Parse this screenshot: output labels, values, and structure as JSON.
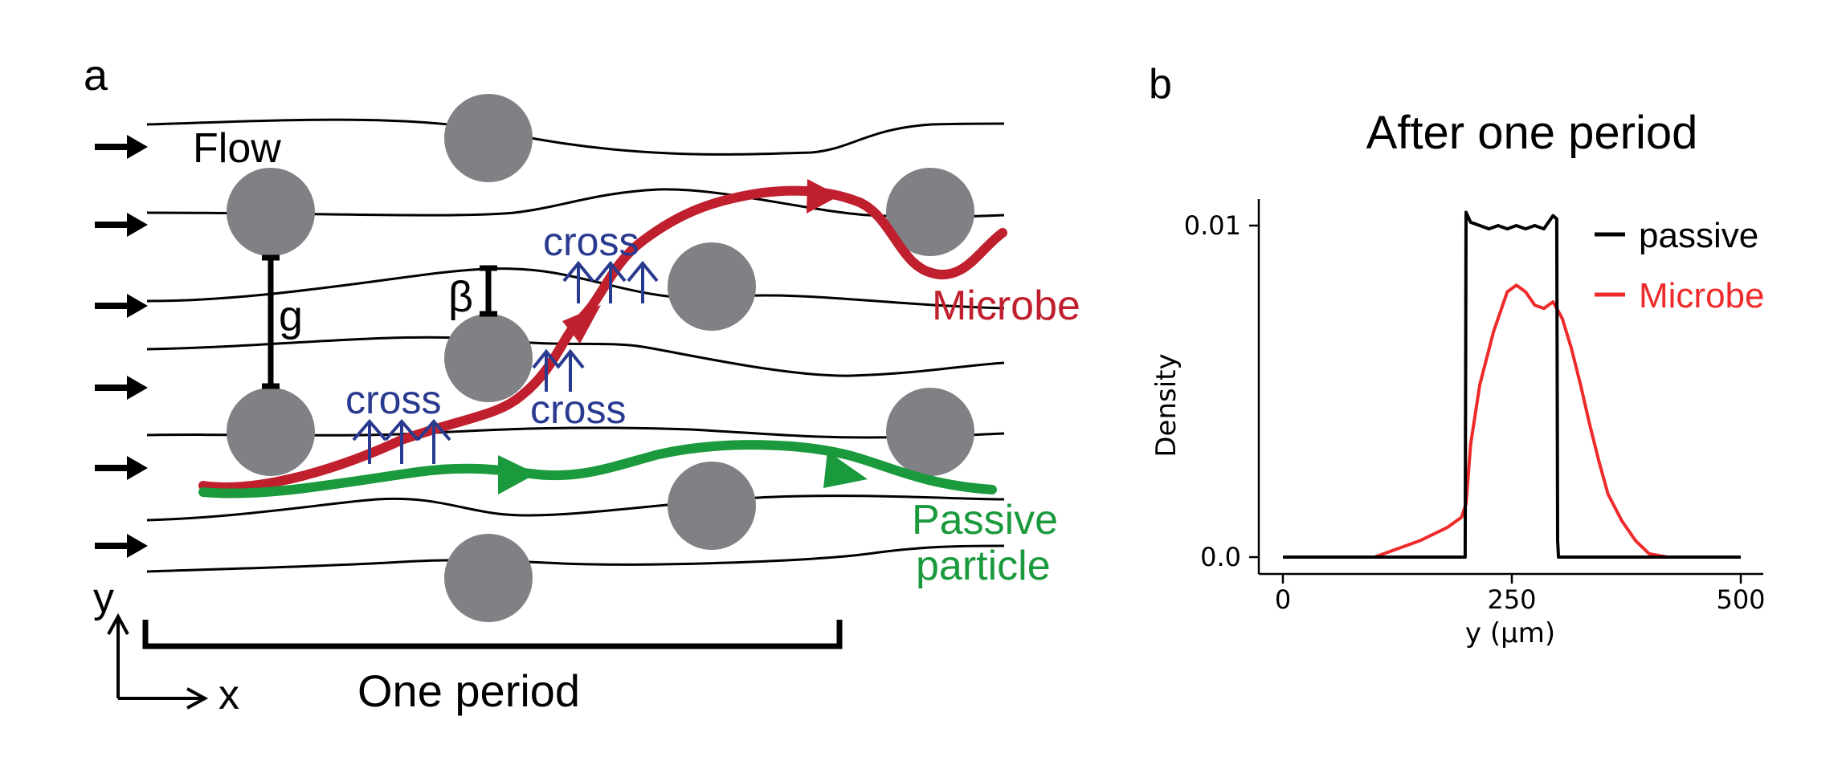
{
  "panel_a": {
    "label": "a",
    "flow_label": "Flow",
    "gap_label": "g",
    "beta_label": "β",
    "cross_label": "cross",
    "microbe_label": "Microbe",
    "passive_label_line1": "Passive",
    "passive_label_line2": "particle",
    "period_label": "One period",
    "axis_y_label": "y",
    "axis_x_label": "x",
    "colors": {
      "microbe": "#c0202e",
      "passive": "#1a9a3c",
      "cross": "#2a3a8f",
      "obstacle": "#808185",
      "streamline": "#000000"
    }
  },
  "panel_b": {
    "label": "b",
    "title": "After one period"
  },
  "chart_data": {
    "type": "line",
    "title": "After one period",
    "xlabel": "y (μm)",
    "ylabel": "Density",
    "xlim": [
      0,
      500
    ],
    "ylim": [
      0,
      0.011
    ],
    "x_ticks": [
      "0",
      "250",
      "500"
    ],
    "y_ticks": [
      "0.0",
      "0.01"
    ],
    "legend_position": "top-right",
    "series": [
      {
        "name": "passive",
        "color": "#000000",
        "x": [
          0,
          195,
          199,
          200,
          205,
          215,
          225,
          235,
          245,
          255,
          265,
          275,
          285,
          295,
          299,
          300,
          301,
          305,
          500
        ],
        "y": [
          0,
          0,
          0,
          0.0104,
          0.0101,
          0.01,
          0.0099,
          0.01,
          0.0099,
          0.01,
          0.0099,
          0.01,
          0.0099,
          0.0103,
          0.0102,
          0.0005,
          0,
          0,
          0
        ]
      },
      {
        "name": "Microbe",
        "color": "#ef2a2a",
        "x": [
          0,
          100,
          120,
          150,
          180,
          195,
          200,
          205,
          215,
          230,
          245,
          255,
          265,
          275,
          285,
          295,
          305,
          315,
          325,
          335,
          345,
          355,
          370,
          385,
          400,
          420,
          500
        ],
        "y": [
          0,
          0,
          0.0002,
          0.0005,
          0.0009,
          0.0012,
          0.0016,
          0.0034,
          0.0052,
          0.0068,
          0.008,
          0.0082,
          0.008,
          0.0076,
          0.0075,
          0.0077,
          0.0072,
          0.0063,
          0.0052,
          0.004,
          0.0029,
          0.0019,
          0.0011,
          0.0005,
          0.0001,
          0,
          0
        ]
      }
    ]
  }
}
